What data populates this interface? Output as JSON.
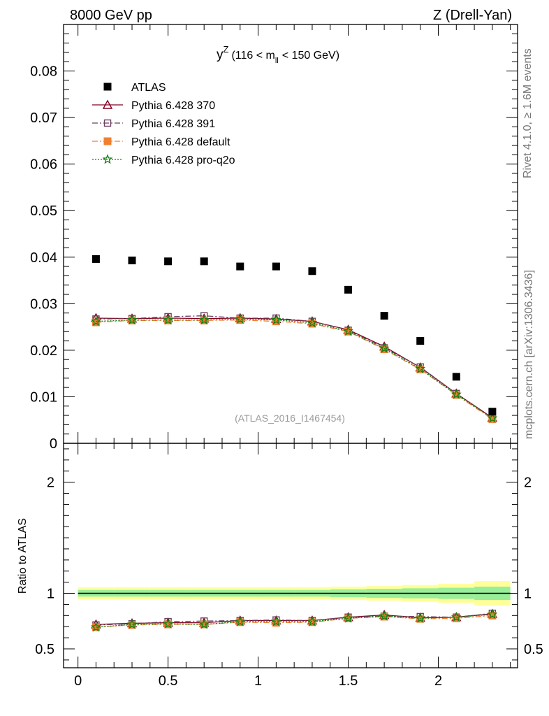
{
  "header": {
    "left": "8000 GeV pp",
    "right": "Z (Drell-Yan)"
  },
  "side_text": {
    "rivet": "Rivet 4.1.0, ≥ 1.6M events",
    "mcplots": "mcplots.cern.ch [arXiv:1306.3436]"
  },
  "chart_data": {
    "type": "scatter",
    "title_main": "y",
    "title_sup": "Z",
    "title_paren_open": "(116 < m",
    "title_sub": "ll",
    "title_paren_close": "< 150 GeV)",
    "watermark": "(ATLAS_2016_I1467454)",
    "xlim": [
      -0.08,
      2.44
    ],
    "ylim": [
      0,
      0.09
    ],
    "ratio_ylim": [
      0.33,
      2.35
    ],
    "ratio_ylabel": "Ratio to ATLAS",
    "x_ticks": [
      {
        "v": 0,
        "label": "0"
      },
      {
        "v": 0.5,
        "label": "0.5"
      },
      {
        "v": 1,
        "label": "1"
      },
      {
        "v": 1.5,
        "label": "1.5"
      },
      {
        "v": 2,
        "label": "2"
      }
    ],
    "y_ticks": [
      {
        "v": 0,
        "label": "0"
      },
      {
        "v": 0.01,
        "label": "0.01"
      },
      {
        "v": 0.02,
        "label": "0.02"
      },
      {
        "v": 0.03,
        "label": "0.03"
      },
      {
        "v": 0.04,
        "label": "0.04"
      },
      {
        "v": 0.05,
        "label": "0.05"
      },
      {
        "v": 0.06,
        "label": "0.06"
      },
      {
        "v": 0.07,
        "label": "0.07"
      },
      {
        "v": 0.08,
        "label": "0.08"
      }
    ],
    "ratio_ticks": [
      {
        "v": 0.5,
        "label": "0.5"
      },
      {
        "v": 1,
        "label": "1"
      },
      {
        "v": 2,
        "label": "2"
      }
    ],
    "x": [
      0.1,
      0.3,
      0.5,
      0.7,
      0.9,
      1.1,
      1.3,
      1.5,
      1.7,
      1.9,
      2.1,
      2.3
    ],
    "bin_edges": [
      0.0,
      0.2,
      0.4,
      0.6,
      0.8,
      1.0,
      1.2,
      1.4,
      1.6,
      1.8,
      2.0,
      2.2,
      2.4
    ],
    "ratio_band_inner": [
      0.03,
      0.03,
      0.03,
      0.03,
      0.03,
      0.03,
      0.03,
      0.035,
      0.04,
      0.045,
      0.05,
      0.06
    ],
    "ratio_band_outer": [
      0.055,
      0.055,
      0.055,
      0.055,
      0.055,
      0.055,
      0.055,
      0.06,
      0.065,
      0.075,
      0.085,
      0.11
    ],
    "series": [
      {
        "name": "ATLAS",
        "marker": "square-filled",
        "color": "#000000",
        "line": "none",
        "values": [
          0.0396,
          0.0393,
          0.0391,
          0.0391,
          0.038,
          0.038,
          0.037,
          0.033,
          0.0274,
          0.022,
          0.0143,
          0.0068
        ],
        "ratio": [
          1,
          1,
          1,
          1,
          1,
          1,
          1,
          1,
          1,
          1,
          1,
          1
        ]
      },
      {
        "name": "Pythia 6.428 370",
        "marker": "triangle-open",
        "color": "#800020",
        "line": "solid",
        "values": [
          0.0269,
          0.0268,
          0.0269,
          0.0268,
          0.0269,
          0.0267,
          0.0262,
          0.0244,
          0.0208,
          0.0163,
          0.0107,
          0.0055
        ],
        "ratio": [
          0.72,
          0.73,
          0.735,
          0.735,
          0.755,
          0.755,
          0.755,
          0.785,
          0.805,
          0.78,
          0.785,
          0.815
        ]
      },
      {
        "name": "Pythia 6.428 391",
        "marker": "square-open",
        "color": "#6b4060",
        "line": "dashdot",
        "values": [
          0.0267,
          0.0268,
          0.0272,
          0.0274,
          0.0269,
          0.0269,
          0.0262,
          0.0243,
          0.0205,
          0.0164,
          0.0107,
          0.0054
        ],
        "ratio": [
          0.715,
          0.725,
          0.745,
          0.75,
          0.755,
          0.76,
          0.755,
          0.785,
          0.795,
          0.79,
          0.785,
          0.82
        ]
      },
      {
        "name": "Pythia 6.428 default",
        "marker": "square-filled",
        "color": "#f08030",
        "line": "dashdot",
        "values": [
          0.026,
          0.0264,
          0.0264,
          0.0264,
          0.0265,
          0.0262,
          0.0257,
          0.024,
          0.0202,
          0.0159,
          0.0104,
          0.0052
        ],
        "ratio": [
          0.695,
          0.715,
          0.72,
          0.72,
          0.74,
          0.735,
          0.74,
          0.775,
          0.79,
          0.77,
          0.775,
          0.8
        ]
      },
      {
        "name": "Pythia 6.428 pro-q2o",
        "marker": "star-open",
        "color": "#108010",
        "line": "dotted",
        "values": [
          0.0262,
          0.0265,
          0.0265,
          0.0265,
          0.0267,
          0.0265,
          0.0259,
          0.0241,
          0.0204,
          0.016,
          0.0105,
          0.0054
        ],
        "ratio": [
          0.695,
          0.72,
          0.725,
          0.72,
          0.745,
          0.745,
          0.745,
          0.775,
          0.795,
          0.775,
          0.785,
          0.81
        ]
      }
    ]
  }
}
